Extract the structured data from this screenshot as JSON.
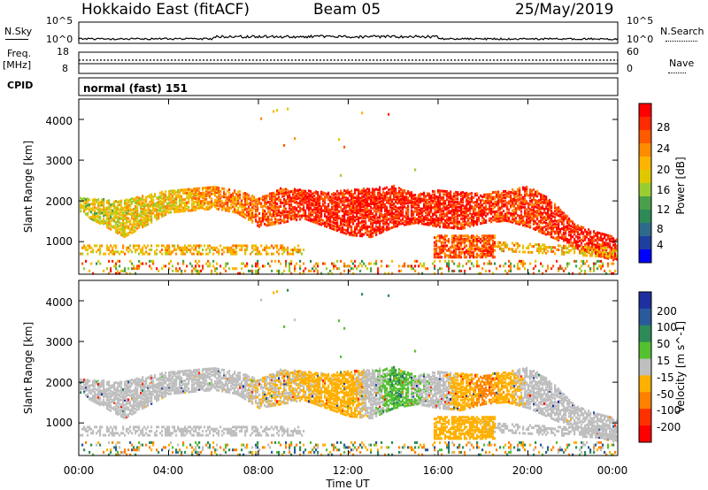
{
  "header": {
    "station": "Hokkaido East (fitACF)",
    "beam": "Beam 05",
    "date": "25/May/2019"
  },
  "left_labels": {
    "nsky": "N.Sky",
    "freq": "Freq.",
    "freq_unit": "[MHz]",
    "cpid": "CPID"
  },
  "right_labels": {
    "nsearch": "N.Search",
    "nave": "Nave"
  },
  "strip_ticks": {
    "noise_left": [
      "10^5",
      "10^0"
    ],
    "noise_right": [
      "10^5",
      "10^0"
    ],
    "freq_left": [
      "18",
      "8"
    ],
    "nave_right": [
      "60",
      "0"
    ]
  },
  "cpid_text": "normal (fast) 151",
  "x_ticks": [
    "00:00",
    "04:00",
    "08:00",
    "12:00",
    "16:00",
    "20:00",
    "00:00"
  ],
  "x_label": "Time UT",
  "y_label": "Slant Range [km]",
  "y_ticks": [
    "4000",
    "3000",
    "2000",
    "1000"
  ],
  "power_scale": {
    "label": "Power [dB]",
    "ticks": [
      "28",
      "24",
      "20",
      "16",
      "12",
      "8",
      "4"
    ],
    "colors": [
      "#ff0000",
      "#ff2a00",
      "#ff5a00",
      "#ff8c00",
      "#ffb400",
      "#e0c800",
      "#9acd32",
      "#4aa04a",
      "#2e8b57",
      "#2e6b8b",
      "#1f3f9f",
      "#0000ff"
    ]
  },
  "velocity_scale": {
    "label": "Velocity [m s^-1]",
    "ticks": [
      "200",
      "100",
      "50",
      "15",
      "-15",
      "-50",
      "-100",
      "-200"
    ],
    "colors": [
      "#1f2fa0",
      "#2a5a9c",
      "#2e8b57",
      "#55c030",
      "#bfbfbf",
      "#ffb000",
      "#ff8000",
      "#ff3000",
      "#ff0000"
    ]
  },
  "chart_data": [
    {
      "type": "heatmap",
      "title": "Power",
      "xlabel": "Time UT",
      "ylabel": "Slant Range [km]",
      "xlim": [
        "00:00",
        "24:00"
      ],
      "ylim": [
        200,
        4500
      ],
      "colorbar": {
        "label": "Power [dB]",
        "range": [
          0,
          30
        ]
      },
      "series": [
        {
          "name": "band_lower_km",
          "x": [
            0,
            2,
            4,
            6,
            7,
            8,
            9,
            10,
            11,
            12,
            13,
            14,
            15,
            16,
            17,
            18,
            19,
            20,
            21,
            22,
            23,
            24
          ],
          "values": [
            1750,
            1150,
            1750,
            1850,
            1750,
            1400,
            1500,
            1600,
            1400,
            1200,
            1150,
            1400,
            1500,
            1400,
            1350,
            1500,
            1550,
            1400,
            1150,
            900,
            700,
            550
          ]
        },
        {
          "name": "band_upper_km",
          "x": [
            0,
            2,
            4,
            6,
            7,
            8,
            9,
            10,
            11,
            12,
            13,
            14,
            15,
            16,
            17,
            18,
            19,
            20,
            21,
            22,
            23,
            24
          ],
          "values": [
            2100,
            2050,
            2300,
            2400,
            2300,
            2100,
            2350,
            2300,
            2250,
            2300,
            2350,
            2400,
            2200,
            2300,
            2250,
            2200,
            2300,
            2400,
            2050,
            1500,
            1300,
            1100
          ]
        },
        {
          "name": "band_power_dB",
          "x": [
            0,
            4,
            8,
            10,
            12,
            14,
            16,
            20,
            22,
            24
          ],
          "values": [
            16,
            18,
            24,
            28,
            28,
            28,
            28,
            26,
            28,
            28
          ]
        }
      ]
    },
    {
      "type": "heatmap",
      "title": "Velocity",
      "xlabel": "Time UT",
      "ylabel": "Slant Range [km]",
      "xlim": [
        "00:00",
        "24:00"
      ],
      "ylim": [
        200,
        4500
      ],
      "colorbar": {
        "label": "Velocity [m s^-1]",
        "range": [
          -250,
          250
        ]
      },
      "series": [
        {
          "name": "band_velocity",
          "x": [
            0,
            6,
            10,
            12,
            14,
            16,
            18,
            20,
            24
          ],
          "values": [
            0,
            0,
            -20,
            -30,
            30,
            0,
            -60,
            0,
            0
          ]
        }
      ]
    }
  ]
}
